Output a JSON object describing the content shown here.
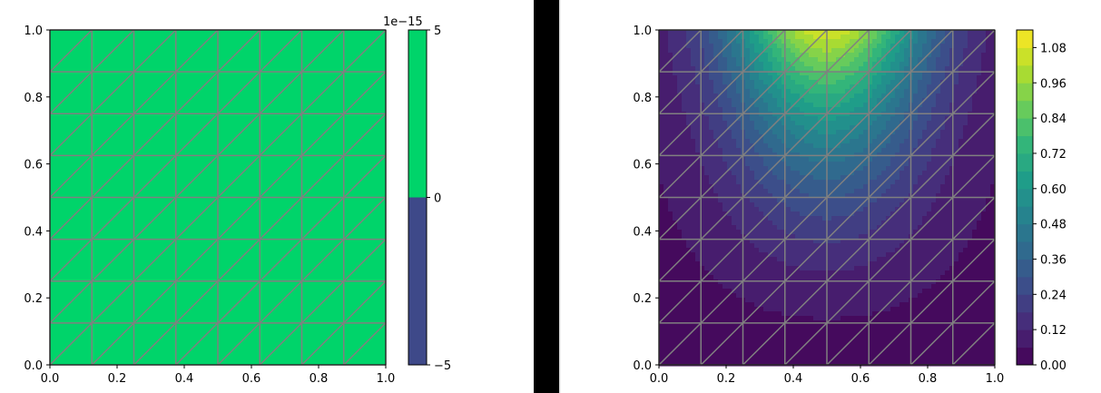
{
  "chart_data": [
    {
      "type": "heatmap",
      "title": "",
      "xlabel": "",
      "ylabel": "",
      "xlim": [
        0.0,
        1.0
      ],
      "ylim": [
        0.0,
        1.0
      ],
      "x_ticks": [
        "0.0",
        "0.2",
        "0.4",
        "0.6",
        "0.8",
        "1.0"
      ],
      "y_ticks": [
        "0.0",
        "0.2",
        "0.4",
        "0.6",
        "0.8",
        "1.0"
      ],
      "grid": false,
      "mesh": {
        "divisions": 8,
        "triangulated": true,
        "color": "#808080"
      },
      "field": "constant",
      "fill_color": "#00d46a",
      "colorbar": {
        "offset_label": "1e−15",
        "ticks": [
          "−5",
          "0",
          "5"
        ],
        "range": [
          -5,
          5
        ],
        "bands": [
          {
            "from": -5,
            "to": 0,
            "color": "#3e4989"
          },
          {
            "from": 0,
            "to": 5,
            "color": "#00d46a"
          }
        ]
      }
    },
    {
      "type": "heatmap",
      "title": "",
      "xlabel": "",
      "ylabel": "",
      "xlim": [
        0.0,
        1.0
      ],
      "ylim": [
        0.0,
        1.0
      ],
      "x_ticks": [
        "0.0",
        "0.2",
        "0.4",
        "0.6",
        "0.8",
        "1.0"
      ],
      "y_ticks": [
        "0.0",
        "0.2",
        "0.4",
        "0.6",
        "0.8",
        "1.0"
      ],
      "grid": false,
      "mesh": {
        "divisions": 8,
        "triangulated": true,
        "color": "#808080"
      },
      "field": "peak near top edge (x≈0.5, y=1.0), decaying toward bottom",
      "colormap": "viridis",
      "max_value": 1.1,
      "colorbar": {
        "ticks": [
          "0.00",
          "0.12",
          "0.24",
          "0.36",
          "0.48",
          "0.60",
          "0.72",
          "0.84",
          "0.96",
          "1.08"
        ],
        "range": [
          0.0,
          1.14
        ]
      }
    }
  ]
}
